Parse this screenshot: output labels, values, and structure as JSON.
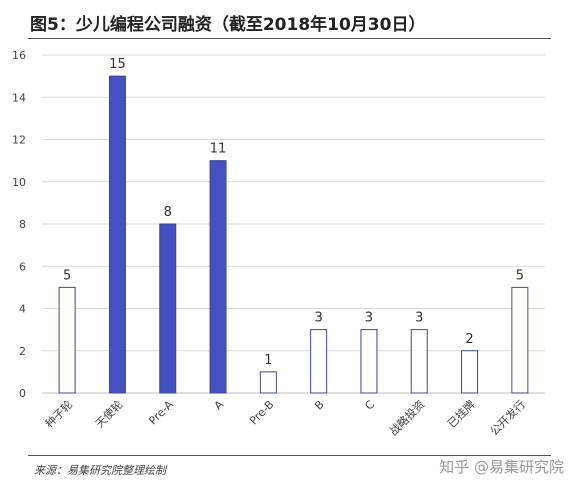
{
  "header": {
    "title": "图5：少儿编程公司融资（截至2018年10月30日）"
  },
  "footer": {
    "source": "来源：易集研究院整理绘制",
    "watermark": "知乎 @易集研究院"
  },
  "colors": {
    "filled_bar": "#4551c2",
    "outline_bar": "#3f4a8c",
    "grid": "#d9d9d9"
  },
  "chart_data": {
    "type": "bar",
    "title": "图5：少儿编程公司融资（截至2018年10月30日）",
    "xlabel": "",
    "ylabel": "",
    "categories": [
      "种子轮",
      "天使轮",
      "Pre-A",
      "A",
      "Pre-B",
      "B",
      "C",
      "战略投资",
      "已挂牌",
      "公开发行"
    ],
    "values": [
      5,
      15,
      8,
      11,
      1,
      3,
      3,
      3,
      2,
      5
    ],
    "filled": [
      false,
      true,
      true,
      true,
      false,
      false,
      false,
      false,
      false,
      false
    ],
    "ylim": [
      0,
      16
    ],
    "yticks": [
      0,
      2,
      4,
      6,
      8,
      10,
      12,
      14,
      16
    ],
    "grid": true,
    "legend": "none"
  }
}
